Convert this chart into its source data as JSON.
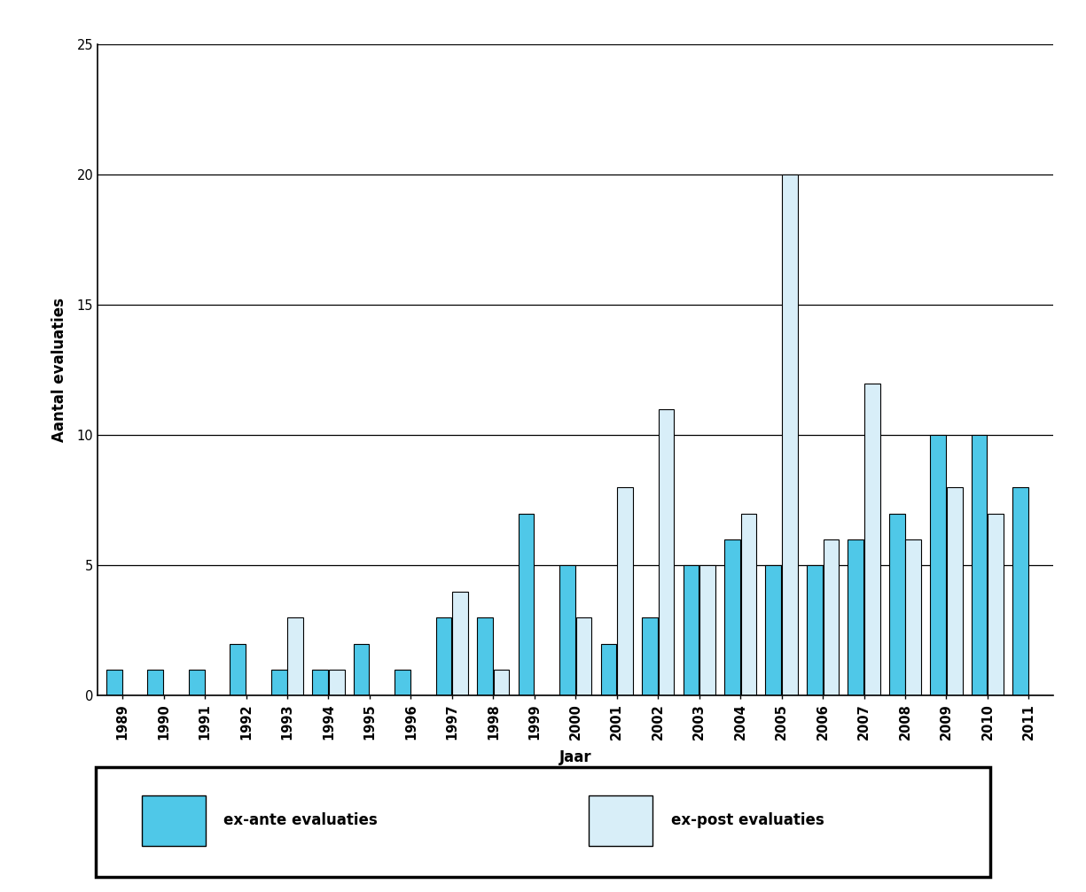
{
  "years": [
    1989,
    1990,
    1991,
    1992,
    1993,
    1994,
    1995,
    1996,
    1997,
    1998,
    1999,
    2000,
    2001,
    2002,
    2003,
    2004,
    2005,
    2006,
    2007,
    2008,
    2009,
    2010,
    2011
  ],
  "ex_ante": [
    1,
    1,
    1,
    2,
    1,
    1,
    2,
    1,
    3,
    3,
    7,
    5,
    2,
    3,
    5,
    6,
    5,
    5,
    6,
    7,
    10,
    10,
    8
  ],
  "ex_post": [
    0,
    0,
    0,
    0,
    3,
    1,
    0,
    0,
    4,
    1,
    0,
    3,
    8,
    11,
    5,
    7,
    20,
    6,
    12,
    6,
    8,
    7,
    0
  ],
  "ex_ante_color": "#4FC8E8",
  "ex_post_color": "#D8EEF8",
  "ex_ante_edge": "#000000",
  "ex_post_edge": "#000000",
  "ylabel": "Aantal evaluaties",
  "xlabel": "Jaar",
  "ylim": [
    0,
    25
  ],
  "yticks": [
    0,
    5,
    10,
    15,
    20,
    25
  ],
  "legend_label_1": "ex-ante evaluaties",
  "legend_label_2": "ex-post evaluaties",
  "background_color": "#ffffff",
  "bar_width": 0.38,
  "bar_gap": 0.02
}
